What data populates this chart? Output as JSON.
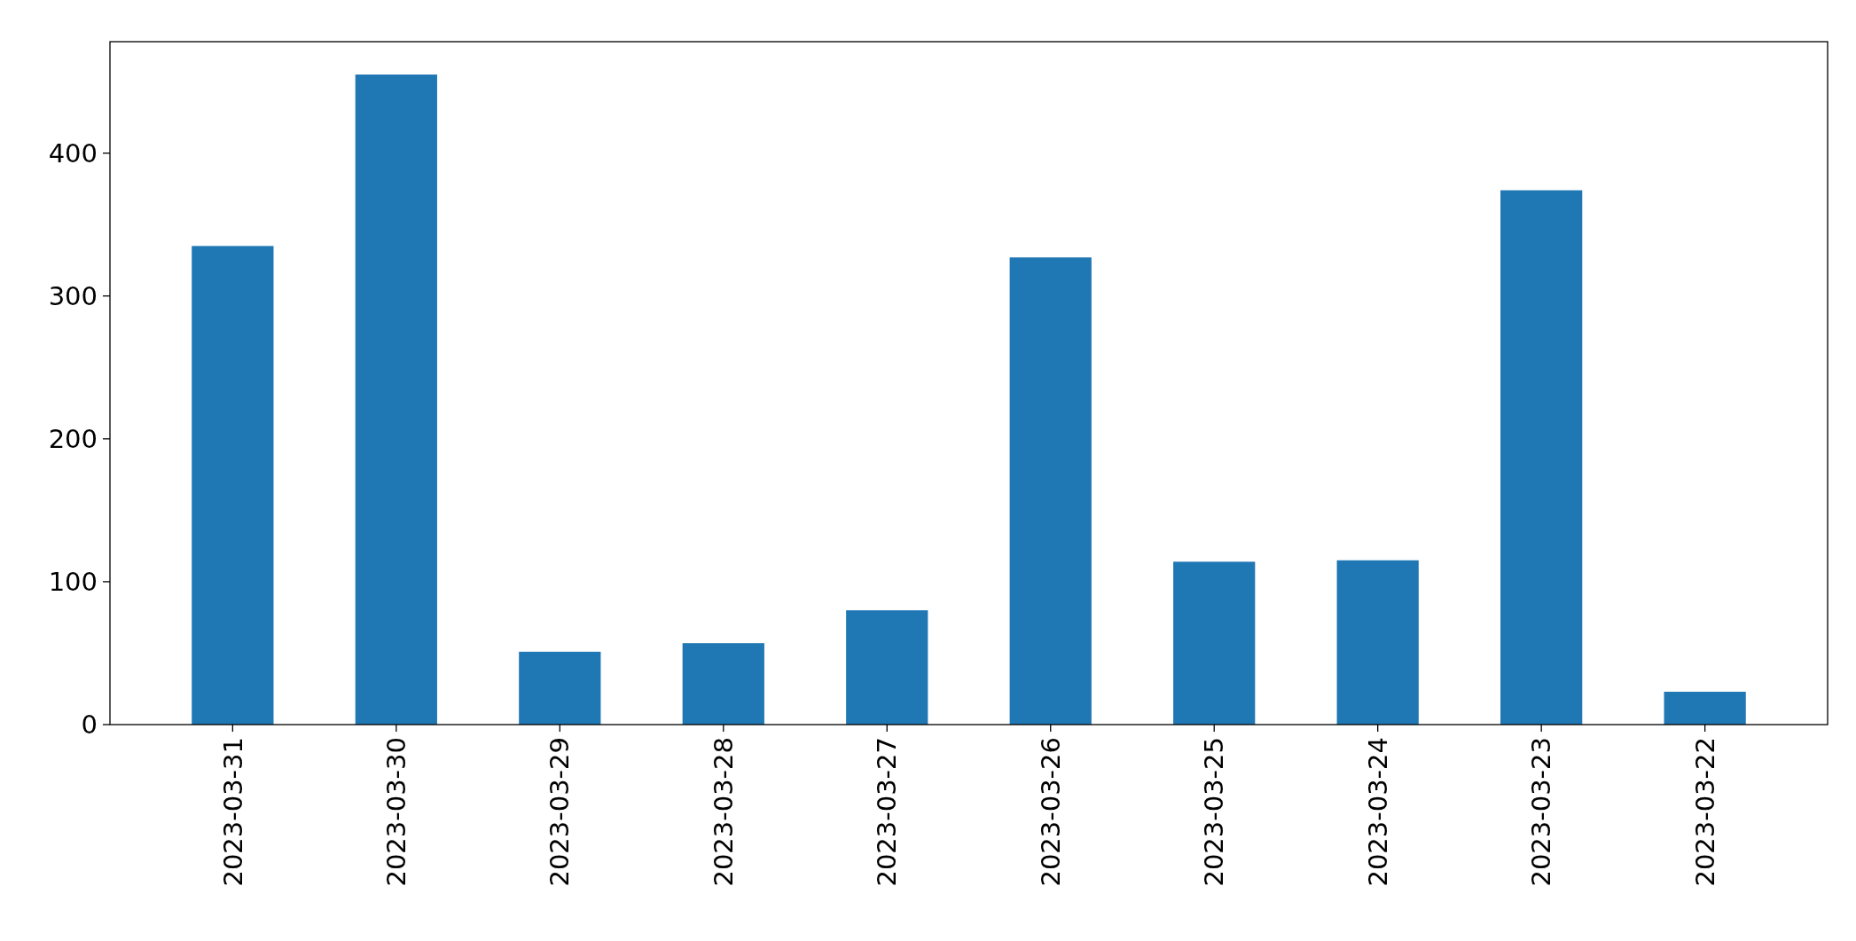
{
  "chart_data": {
    "type": "bar",
    "categories": [
      "2023-03-31",
      "2023-03-30",
      "2023-03-29",
      "2023-03-28",
      "2023-03-27",
      "2023-03-26",
      "2023-03-25",
      "2023-03-24",
      "2023-03-23",
      "2023-03-22"
    ],
    "values": [
      335,
      455,
      51,
      57,
      80,
      327,
      114,
      115,
      374,
      23
    ],
    "color": "#1f77b4",
    "ylim": [
      0,
      478
    ],
    "yticks": [
      0,
      100,
      200,
      300,
      400
    ]
  }
}
